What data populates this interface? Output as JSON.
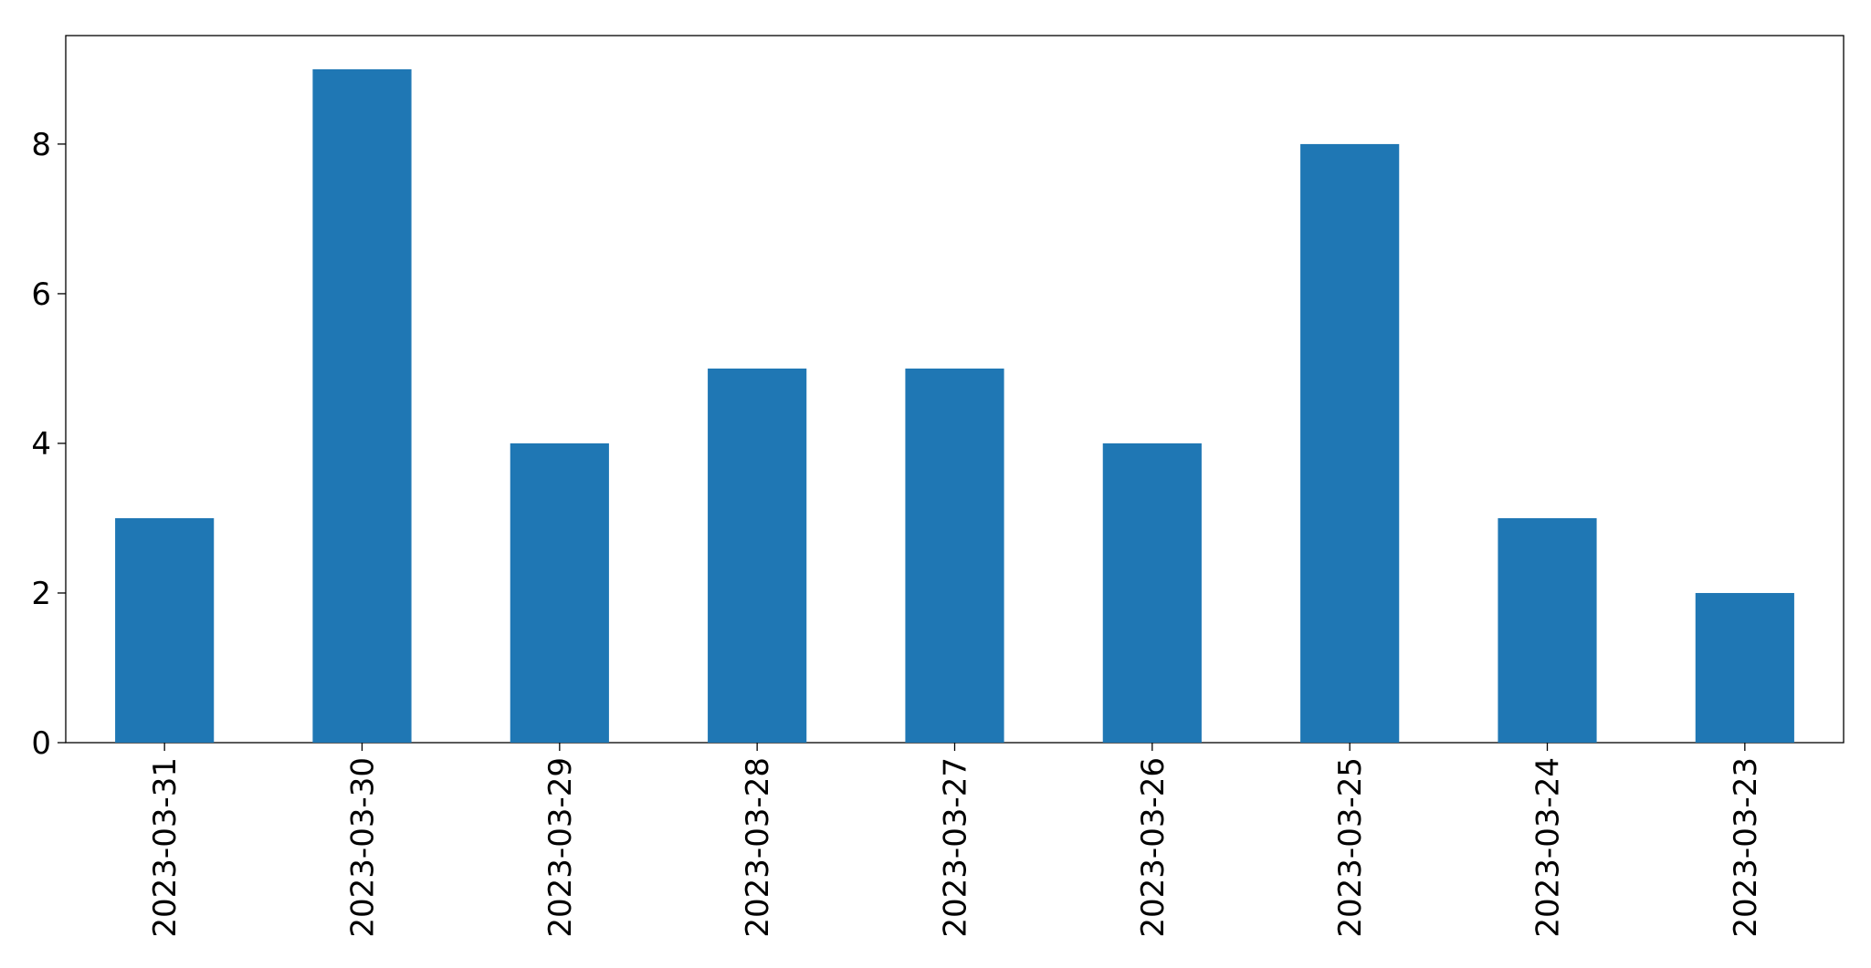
{
  "chart_data": {
    "type": "bar",
    "categories": [
      "2023-03-31",
      "2023-03-30",
      "2023-03-29",
      "2023-03-28",
      "2023-03-27",
      "2023-03-26",
      "2023-03-25",
      "2023-03-24",
      "2023-03-23"
    ],
    "values": [
      3,
      9,
      4,
      5,
      5,
      4,
      8,
      3,
      2
    ],
    "color": "#1f77b4",
    "ylim": [
      0,
      9.45
    ],
    "yticks": [
      0,
      2,
      4,
      6,
      8
    ],
    "grid": false
  }
}
